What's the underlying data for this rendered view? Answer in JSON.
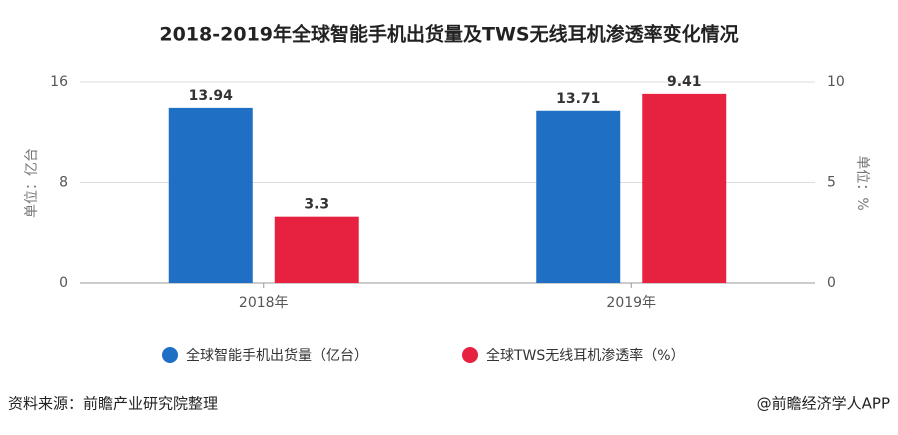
{
  "chart_data": {
    "type": "bar",
    "title": "2018-2019年全球智能手机出货量及TWS无线耳机渗透率变化情况",
    "y_label": "单位：亿台",
    "y2_label": "单位：%",
    "categories": [
      "2018年",
      "2019年"
    ],
    "series": [
      {
        "name": "全球智能手机出货量（亿台）",
        "color": "#1f6fc5",
        "values": [
          13.94,
          13.71
        ]
      },
      {
        "name": "全球TWS无线耳机渗透率（%）",
        "color": "#e62240",
        "values": [
          3.3,
          9.41
        ],
        "axis": "y2"
      }
    ],
    "ylim": [
      0,
      16
    ],
    "yticks": [
      0,
      8,
      16
    ],
    "y2lim": [
      0,
      10
    ],
    "y2ticks": [
      0,
      5,
      10
    ],
    "grid": true,
    "source": "资料来源：前瞻产业研究院整理",
    "credit": "@前瞻经济学人APP"
  }
}
